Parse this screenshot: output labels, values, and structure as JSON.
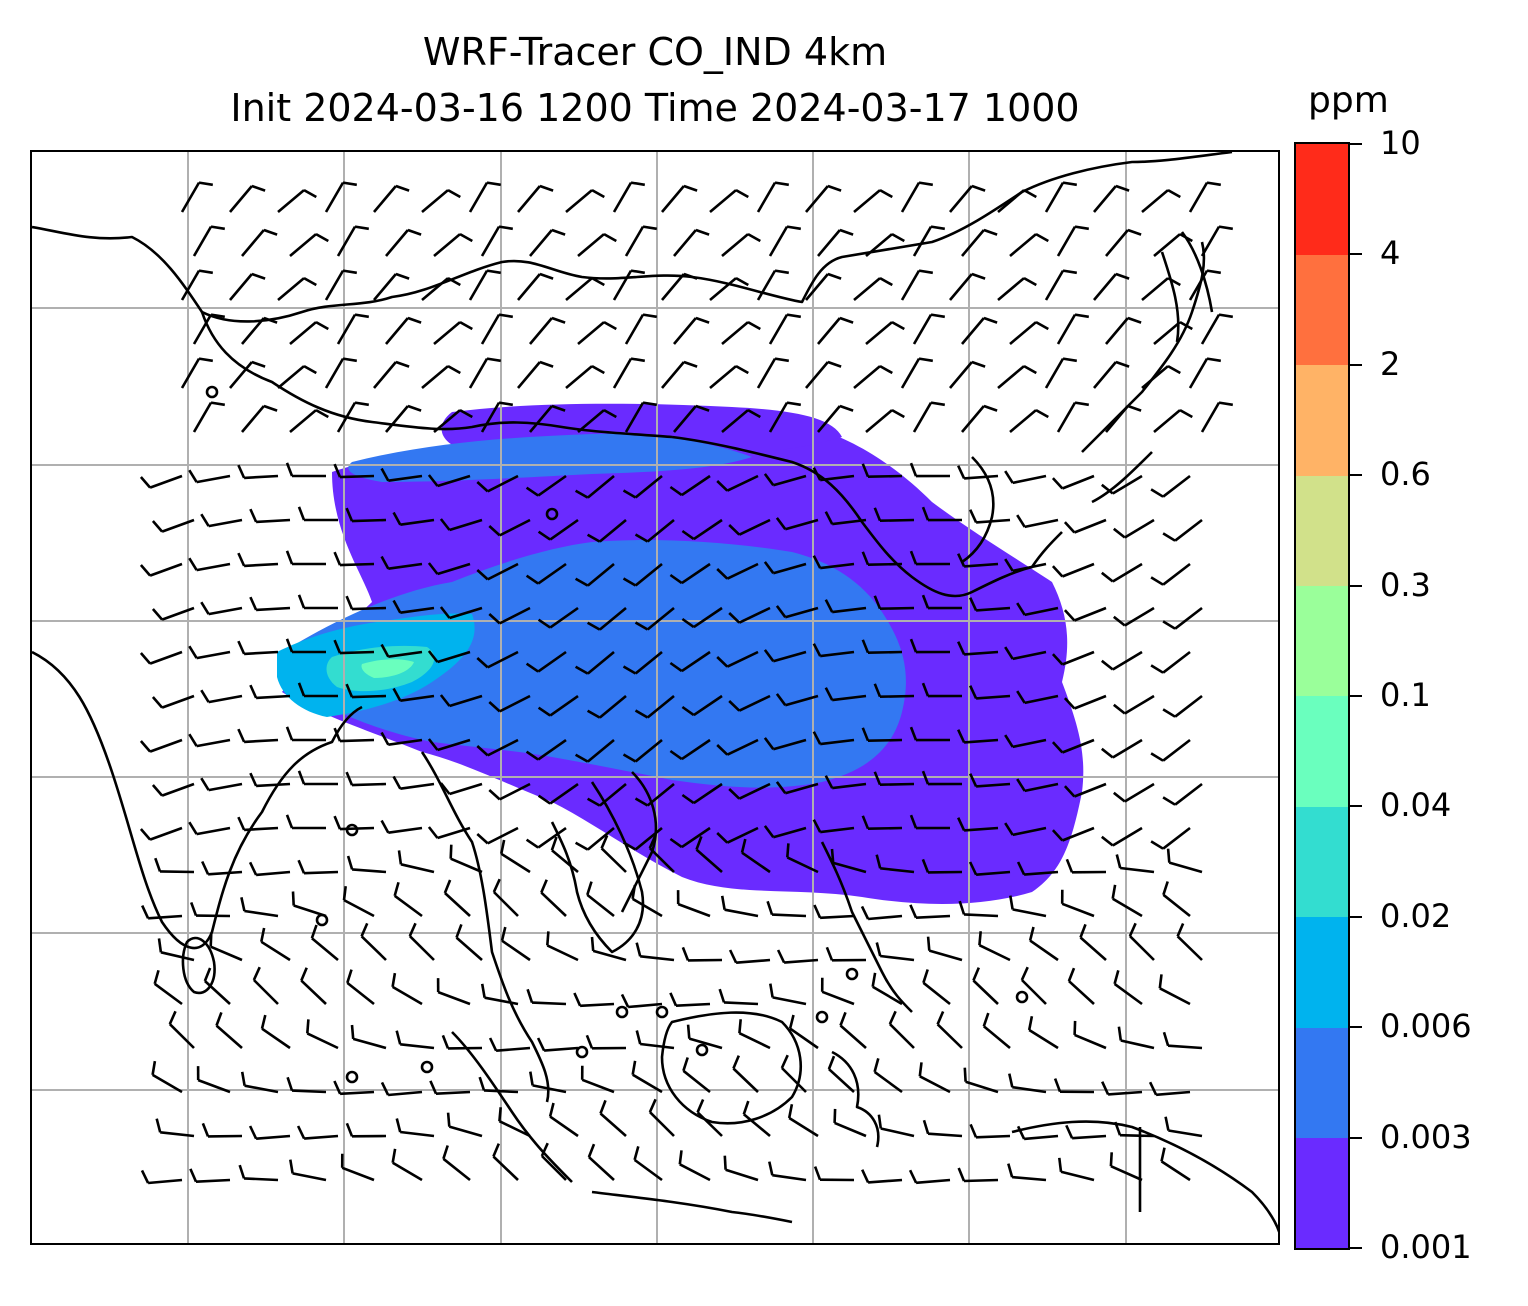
{
  "title": {
    "line1": "WRF-Tracer CO_IND 4km",
    "line2": "Init 2024-03-16 1200 Time 2024-03-17 1000"
  },
  "colorbar": {
    "unit": "ppm",
    "levels": [
      "0.001",
      "0.003",
      "0.006",
      "0.02",
      "0.04",
      "0.1",
      "0.3",
      "0.6",
      "2",
      "4",
      "10"
    ],
    "colors": [
      "#6a2bff",
      "#3378f2",
      "#00b3ee",
      "#33ddd0",
      "#6affbe",
      "#9aff9a",
      "#d1e18a",
      "#ffb366",
      "#ff703e",
      "#ff2b1a"
    ]
  },
  "map": {
    "land_outline_color": "#000000",
    "gridline_color": "#b0b0b0",
    "features": [
      "coastlines",
      "country borders",
      "lat/lon gridlines",
      "wind barbs",
      "CO tracer concentration fill"
    ]
  }
}
